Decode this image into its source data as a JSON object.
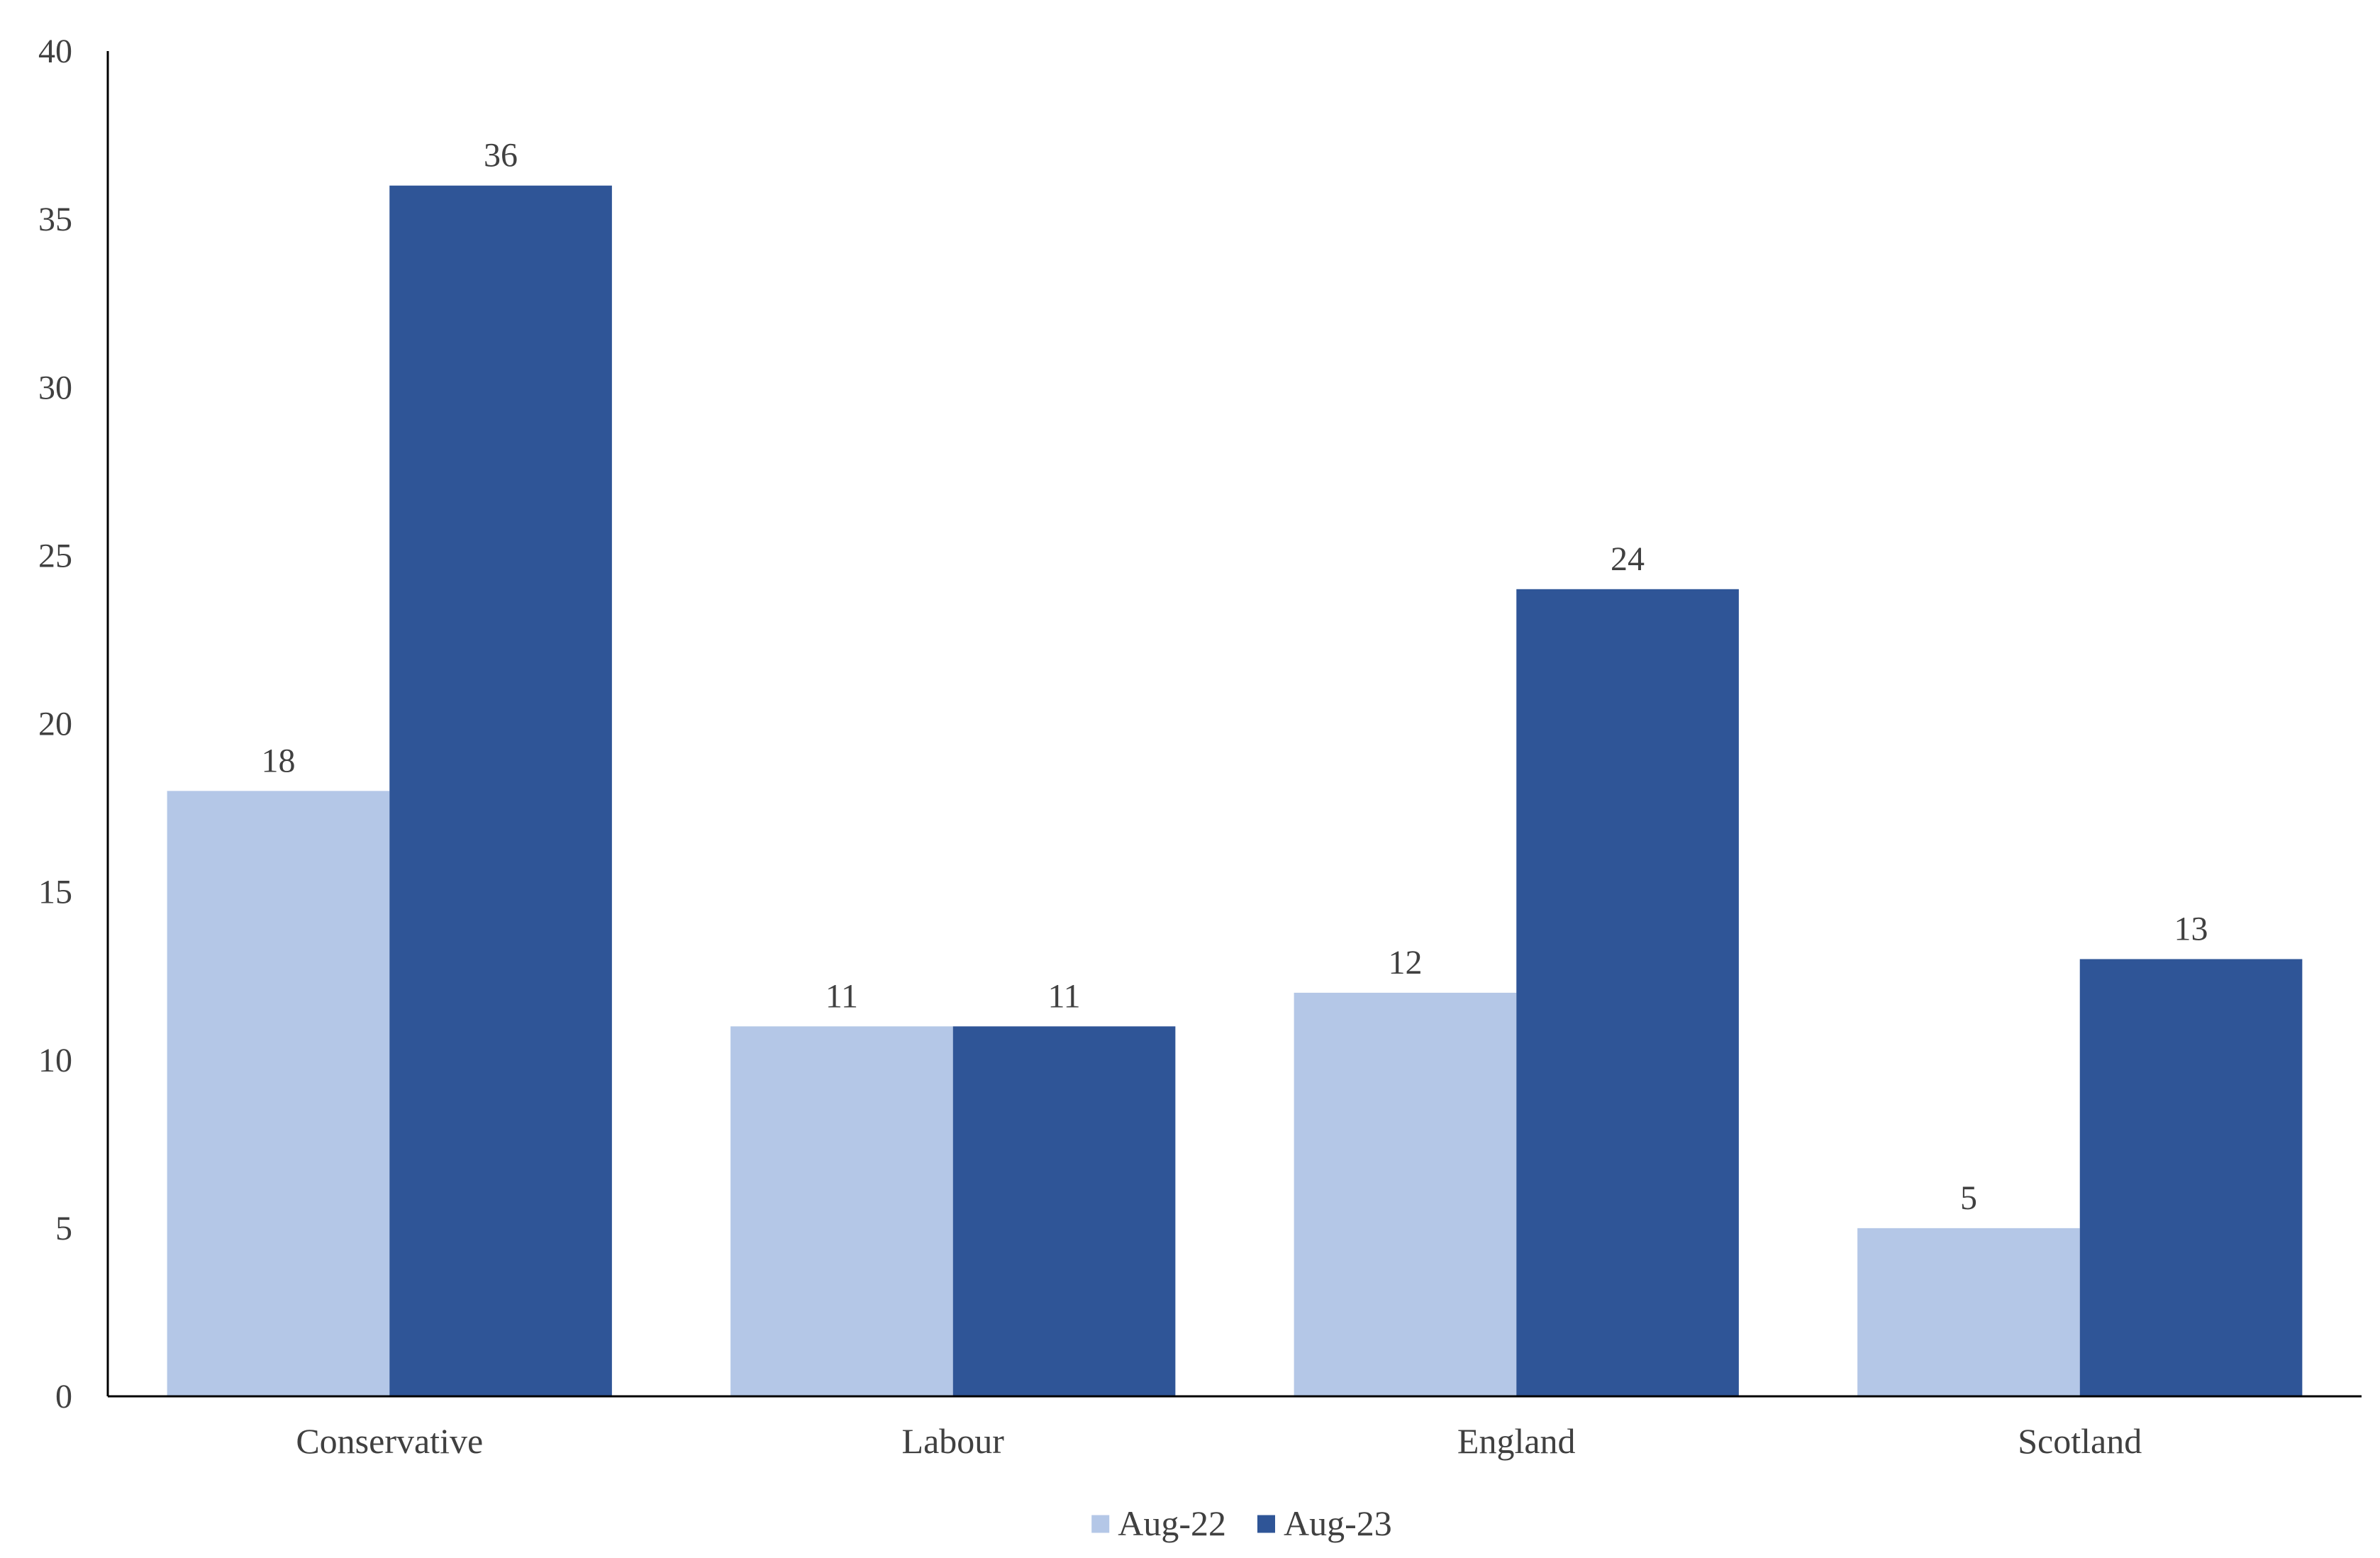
{
  "chart_data": {
    "type": "bar",
    "categories": [
      "Conservative",
      "Labour",
      "England",
      "Scotland"
    ],
    "series": [
      {
        "name": "Aug-22",
        "values": [
          18,
          11,
          12,
          5
        ],
        "color": "#b4c7e7"
      },
      {
        "name": "Aug-23",
        "values": [
          36,
          11,
          24,
          13
        ],
        "color": "#2f5597"
      }
    ],
    "ylim": [
      0,
      40
    ],
    "yticks": [
      0,
      5,
      10,
      15,
      20,
      25,
      30,
      35,
      40
    ],
    "title": "",
    "xlabel": "",
    "ylabel": "",
    "grid": false,
    "legend_position": "bottom",
    "data_labels": true
  }
}
